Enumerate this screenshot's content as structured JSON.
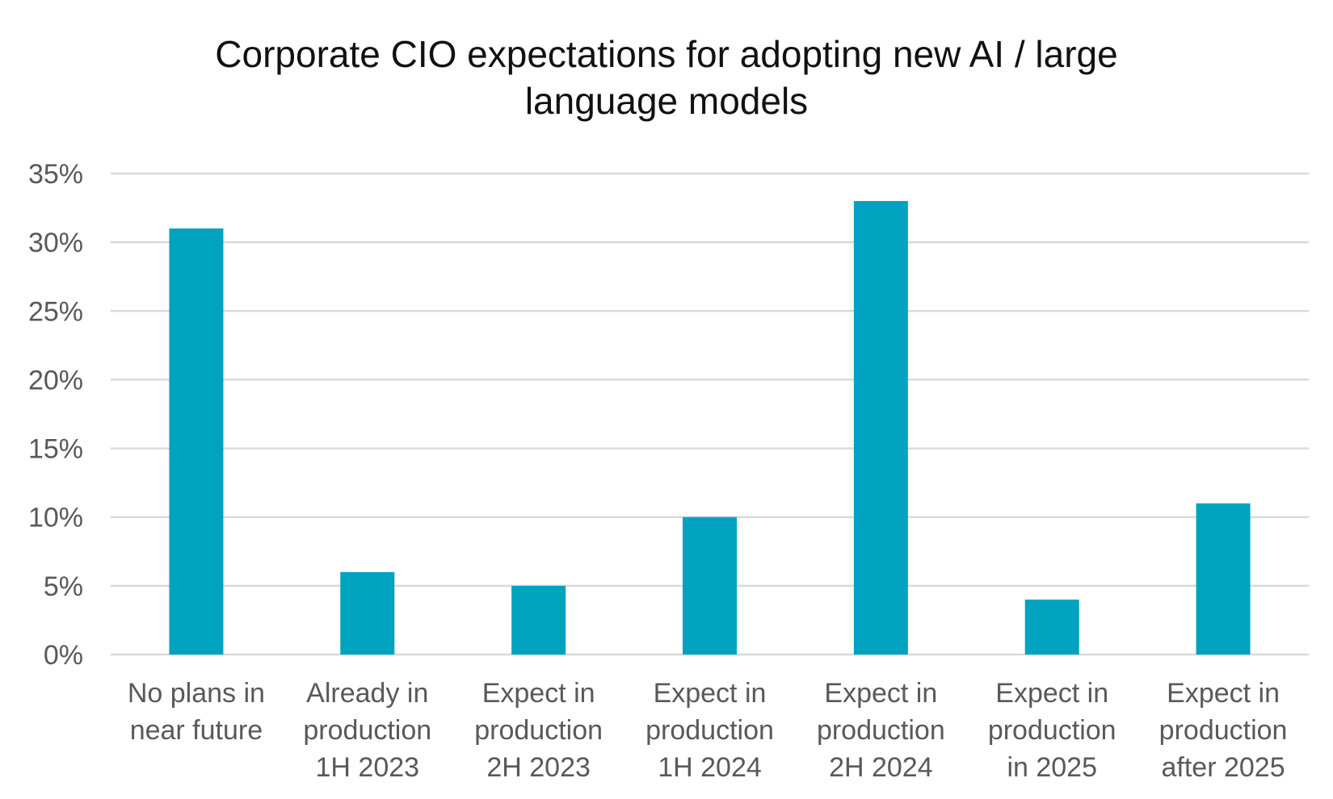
{
  "chart_data": {
    "type": "bar",
    "title": "Corporate CIO expectations for adopting new AI / large\nlanguage models",
    "xlabel": "",
    "ylabel": "",
    "categories": [
      [
        "No plans in",
        "near future"
      ],
      [
        "Already in",
        "production",
        "1H 2023"
      ],
      [
        "Expect in",
        "production",
        "2H 2023"
      ],
      [
        "Expect in",
        "production",
        "1H 2024"
      ],
      [
        "Expect in",
        "production",
        "2H 2024"
      ],
      [
        "Expect in",
        "production",
        "in 2025"
      ],
      [
        "Expect in",
        "production",
        "after 2025"
      ]
    ],
    "values": [
      31,
      6,
      5,
      10,
      33,
      4,
      11
    ],
    "ylim": [
      0,
      35
    ],
    "yticks": [
      0,
      5,
      10,
      15,
      20,
      25,
      30,
      35
    ],
    "ytick_labels": [
      "0%",
      "5%",
      "10%",
      "15%",
      "20%",
      "25%",
      "30%",
      "35%"
    ],
    "grid": true,
    "legend": "none",
    "colors": {
      "bar": "#00a3bf",
      "grid": "#d9d9d9",
      "tick_text": "#595959",
      "title_text": "#111111"
    }
  }
}
